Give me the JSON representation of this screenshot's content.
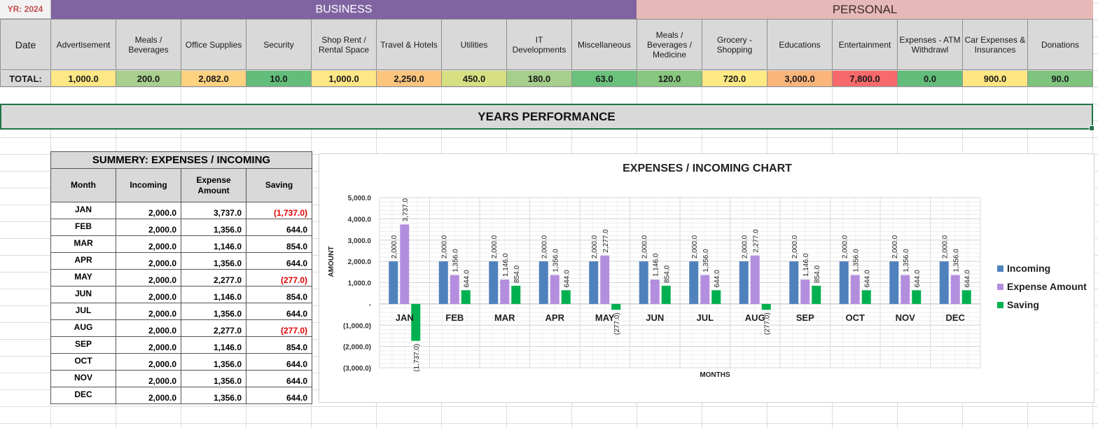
{
  "year_label": "YR: 2024",
  "bands": {
    "business": "BUSINESS",
    "personal": "PERSONAL"
  },
  "columns": [
    {
      "label": "Date",
      "total": "TOTAL:",
      "color": "#d9d9d9"
    },
    {
      "label": "Advertisement",
      "total": "1,000.0",
      "color": "#fee785"
    },
    {
      "label": "Meals / Beverages",
      "total": "200.0",
      "color": "#a9d08e"
    },
    {
      "label": "Office Supplies",
      "total": "2,082.0",
      "color": "#fdd280"
    },
    {
      "label": "Security",
      "total": "10.0",
      "color": "#63be7b"
    },
    {
      "label": "Shop Rent / Rental Space",
      "total": "1,000.0",
      "color": "#fee785"
    },
    {
      "label": "Travel & Hotels",
      "total": "2,250.0",
      "color": "#fcc57d"
    },
    {
      "label": "Utilities",
      "total": "450.0",
      "color": "#d6e082"
    },
    {
      "label": "IT Developments",
      "total": "180.0",
      "color": "#a5cf8b"
    },
    {
      "label": "Miscellaneous",
      "total": "63.0",
      "color": "#6ac17c"
    },
    {
      "label": "Meals / Beverages / Medicine",
      "total": "120.0",
      "color": "#88c780"
    },
    {
      "label": "Grocery - Shopping",
      "total": "720.0",
      "color": "#fdea84"
    },
    {
      "label": "Educations",
      "total": "3,000.0",
      "color": "#fbb57a"
    },
    {
      "label": "Entertainment",
      "total": "7,800.0",
      "color": "#f8696b"
    },
    {
      "label": "Expenses - ATM Withdrawl",
      "total": "0.0",
      "color": "#63be7b"
    },
    {
      "label": "Car Expenses & Insurances",
      "total": "900.0",
      "color": "#fee783"
    },
    {
      "label": "Donations",
      "total": "90.0",
      "color": "#7ec47e"
    }
  ],
  "performance_title": "YEARS PERFORMANCE",
  "summary": {
    "title": "SUMMERY: EXPENSES / INCOMING",
    "headers": [
      "Month",
      "Incoming",
      "Expense Amount",
      "Saving"
    ],
    "rows": [
      {
        "month": "JAN",
        "incoming": "2,000.0",
        "expense": "3,737.0",
        "saving": "(1,737.0)",
        "neg": true
      },
      {
        "month": "FEB",
        "incoming": "2,000.0",
        "expense": "1,356.0",
        "saving": "644.0",
        "neg": false
      },
      {
        "month": "MAR",
        "incoming": "2,000.0",
        "expense": "1,146.0",
        "saving": "854.0",
        "neg": false
      },
      {
        "month": "APR",
        "incoming": "2,000.0",
        "expense": "1,356.0",
        "saving": "644.0",
        "neg": false
      },
      {
        "month": "MAY",
        "incoming": "2,000.0",
        "expense": "2,277.0",
        "saving": "(277.0)",
        "neg": true
      },
      {
        "month": "JUN",
        "incoming": "2,000.0",
        "expense": "1,146.0",
        "saving": "854.0",
        "neg": false
      },
      {
        "month": "JUL",
        "incoming": "2,000.0",
        "expense": "1,356.0",
        "saving": "644.0",
        "neg": false
      },
      {
        "month": "AUG",
        "incoming": "2,000.0",
        "expense": "2,277.0",
        "saving": "(277.0)",
        "neg": true
      },
      {
        "month": "SEP",
        "incoming": "2,000.0",
        "expense": "1,146.0",
        "saving": "854.0",
        "neg": false
      },
      {
        "month": "OCT",
        "incoming": "2,000.0",
        "expense": "1,356.0",
        "saving": "644.0",
        "neg": false
      },
      {
        "month": "NOV",
        "incoming": "2,000.0",
        "expense": "1,356.0",
        "saving": "644.0",
        "neg": false
      },
      {
        "month": "DEC",
        "incoming": "2,000.0",
        "expense": "1,356.0",
        "saving": "644.0",
        "neg": false
      }
    ]
  },
  "chart_data": {
    "type": "bar",
    "title": "EXPENSES / INCOMING CHART",
    "xlabel": "MONTHS",
    "ylabel": "AMOUNT",
    "categories": [
      "JAN",
      "FEB",
      "MAR",
      "APR",
      "MAY",
      "JUN",
      "JUL",
      "AUG",
      "SEP",
      "OCT",
      "NOV",
      "DEC"
    ],
    "series": [
      {
        "name": "Incoming",
        "color": "#4f81bd",
        "values": [
          2000,
          2000,
          2000,
          2000,
          2000,
          2000,
          2000,
          2000,
          2000,
          2000,
          2000,
          2000
        ]
      },
      {
        "name": "Expense Amount",
        "color": "#b48ede",
        "values": [
          3737,
          1356,
          1146,
          1356,
          2277,
          1146,
          1356,
          2277,
          1146,
          1356,
          1356,
          1356
        ]
      },
      {
        "name": "Saving",
        "color": "#00b050",
        "values": [
          -1737,
          644,
          854,
          644,
          -277,
          854,
          644,
          -277,
          854,
          644,
          644,
          644
        ]
      }
    ],
    "yticks": [
      "5,000.0",
      "4,000.0",
      "3,000.0",
      "2,000.0",
      "1,000.0",
      "-",
      "(1,000.0)",
      "(2,000.0)",
      "(3,000.0)"
    ],
    "ylim": [
      -3000,
      5000
    ],
    "grid": true,
    "legend_position": "right"
  }
}
